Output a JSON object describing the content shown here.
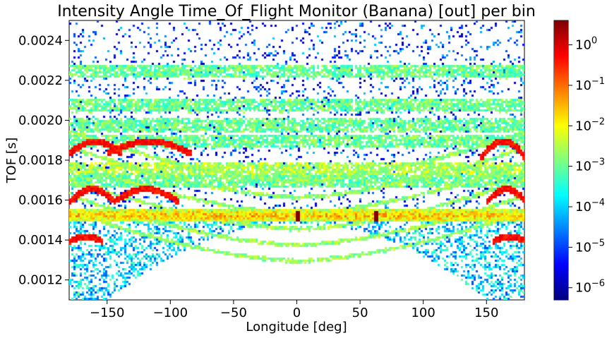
{
  "chart_data": {
    "type": "heatmap",
    "title": "Intensity Angle Time_Of_Flight Monitor (Banana) [out] per bin",
    "xlabel": "Longitude [deg]",
    "ylabel": "TOF [s]",
    "xlim": [
      -180,
      180
    ],
    "ylim": [
      0.0011,
      0.0025
    ],
    "x_ticks": [
      -150,
      -100,
      -50,
      0,
      50,
      100,
      150
    ],
    "x_tick_labels": [
      "−150",
      "−100",
      "−50",
      "0",
      "50",
      "100",
      "150"
    ],
    "y_ticks": [
      0.0012,
      0.0014,
      0.0016,
      0.0018,
      0.002,
      0.0022,
      0.0024
    ],
    "y_tick_labels": [
      "0.0012",
      "0.0014",
      "0.0016",
      "0.0018",
      "0.0020",
      "0.0022",
      "0.0024"
    ],
    "colormap": "jet",
    "color_scale": "log",
    "color_range": [
      5e-07,
      4
    ],
    "colorbar_ticks": [
      {
        "value": 1e-06,
        "base": "10",
        "exp": "−6"
      },
      {
        "value": 1e-05,
        "base": "10",
        "exp": "−5"
      },
      {
        "value": 0.0001,
        "base": "10",
        "exp": "−4"
      },
      {
        "value": 0.001,
        "base": "10",
        "exp": "−3"
      },
      {
        "value": 0.01,
        "base": "10",
        "exp": "−2"
      },
      {
        "value": 0.1,
        "base": "10",
        "exp": "−1"
      },
      {
        "value": 1,
        "base": "10",
        "exp": "0"
      }
    ],
    "grid": false,
    "features": {
      "background_scatter": {
        "tof_range": [
          0.0015,
          0.0025
        ],
        "level": 1e-05
      },
      "green_bands": [
        {
          "tof": 0.00208,
          "level": 0.001
        },
        {
          "tof": 0.00198,
          "level": 0.001
        },
        {
          "tof": 0.0019,
          "level": 0.001
        },
        {
          "tof": 0.00176,
          "level": 0.003
        },
        {
          "tof": 0.0017,
          "level": 0.001
        },
        {
          "tof": 0.00225,
          "level": 0.001
        }
      ],
      "bright_band": {
        "tof": 0.001525,
        "level": 0.03
      },
      "hot_spots": [
        {
          "longitude": 0,
          "tof": 0.001525,
          "level": 4
        },
        {
          "longitude": 63,
          "tof": 0.001525,
          "level": 4
        }
      ],
      "arcs": [
        {
          "longitude_range": [
            -180,
            -140
          ],
          "tof_range": [
            0.00184,
            0.0019
          ],
          "level": 0.5
        },
        {
          "longitude_range": [
            -150,
            -85
          ],
          "tof_range": [
            0.00184,
            0.0019
          ],
          "level": 0.5
        },
        {
          "longitude_range": [
            -145,
            -95
          ],
          "tof_range": [
            0.0016,
            0.00166
          ],
          "level": 0.5
        },
        {
          "longitude_range": [
            -180,
            -145
          ],
          "tof_range": [
            0.0016,
            0.00166
          ],
          "level": 0.5
        },
        {
          "longitude_range": [
            145,
            180
          ],
          "tof_range": [
            0.00182,
            0.0019
          ],
          "level": 0.5
        },
        {
          "longitude_range": [
            150,
            180
          ],
          "tof_range": [
            0.0016,
            0.00166
          ],
          "level": 0.5
        },
        {
          "longitude_range": [
            -180,
            -155
          ],
          "tof_range": [
            0.0014,
            0.00142
          ],
          "level": 0.5
        },
        {
          "longitude_range": [
            155,
            180
          ],
          "tof_range": [
            0.0014,
            0.00142
          ],
          "level": 0.5
        }
      ]
    }
  }
}
